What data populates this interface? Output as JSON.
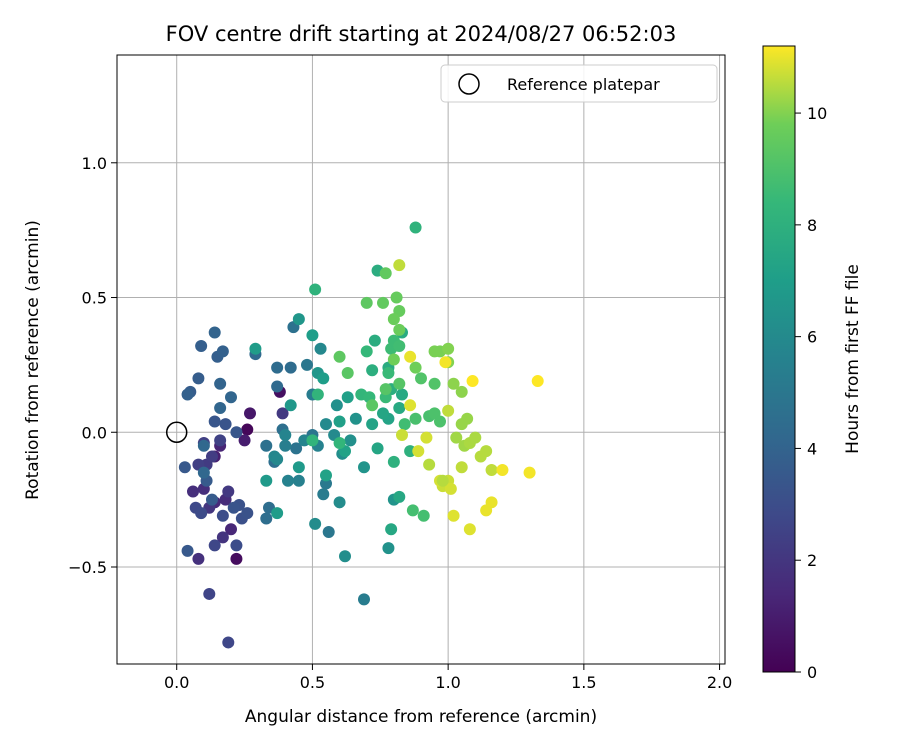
{
  "chart_data": {
    "type": "scatter",
    "title": "FOV centre drift starting at 2024/08/27 06:52:03",
    "xlabel": "Angular distance from reference (arcmin)",
    "ylabel": "Rotation from reference (arcmin)",
    "colorbar_label": "Hours from first FF file",
    "xlim": [
      -0.22,
      2.02
    ],
    "ylim": [
      -0.86,
      1.4
    ],
    "xticks": [
      0.0,
      0.5,
      1.0,
      1.5,
      2.0
    ],
    "xtick_labels": [
      "0.0",
      "0.5",
      "1.0",
      "1.5",
      "2.0"
    ],
    "yticks": [
      -0.5,
      0.0,
      0.5,
      1.0
    ],
    "ytick_labels": [
      "−0.5",
      "0.0",
      "0.5",
      "1.0"
    ],
    "colorbar_range": [
      0,
      11.2
    ],
    "colorbar_ticks": [
      0,
      2,
      4,
      6,
      8,
      10
    ],
    "colorbar_tick_labels": [
      "0",
      "2",
      "4",
      "6",
      "8",
      "10"
    ],
    "colormap": "viridis",
    "grid": true,
    "legend_position": "top-right",
    "reference": {
      "x": 0.0,
      "y": 0.0,
      "label": "Reference platepar"
    },
    "points": [
      {
        "x": 0.26,
        "y": 0.01,
        "h": 0.2
      },
      {
        "x": 0.22,
        "y": -0.47,
        "h": 0.4
      },
      {
        "x": 0.38,
        "y": 0.15,
        "h": 0.5
      },
      {
        "x": 0.27,
        "y": 0.07,
        "h": 0.8
      },
      {
        "x": 0.25,
        "y": -0.03,
        "h": 1.0
      },
      {
        "x": 0.14,
        "y": -0.09,
        "h": 1.1
      },
      {
        "x": 0.16,
        "y": -0.05,
        "h": 1.3
      },
      {
        "x": 0.2,
        "y": -0.36,
        "h": 1.4
      },
      {
        "x": 0.14,
        "y": -0.26,
        "h": 1.5
      },
      {
        "x": 0.18,
        "y": -0.25,
        "h": 1.6
      },
      {
        "x": 0.1,
        "y": -0.21,
        "h": 1.7
      },
      {
        "x": 0.06,
        "y": -0.22,
        "h": 1.7
      },
      {
        "x": 0.08,
        "y": -0.47,
        "h": 1.8
      },
      {
        "x": 0.17,
        "y": -0.39,
        "h": 1.9
      },
      {
        "x": 0.12,
        "y": -0.28,
        "h": 2.0
      },
      {
        "x": 0.19,
        "y": -0.22,
        "h": 2.1
      },
      {
        "x": 0.39,
        "y": 0.07,
        "h": 2.1
      },
      {
        "x": 0.11,
        "y": -0.12,
        "h": 2.2
      },
      {
        "x": 0.13,
        "y": -0.09,
        "h": 2.3
      },
      {
        "x": 0.08,
        "y": -0.12,
        "h": 2.4
      },
      {
        "x": 0.1,
        "y": -0.04,
        "h": 2.4
      },
      {
        "x": 0.16,
        "y": -0.03,
        "h": 2.5
      },
      {
        "x": 0.12,
        "y": -0.6,
        "h": 2.6
      },
      {
        "x": 0.14,
        "y": -0.42,
        "h": 2.7
      },
      {
        "x": 0.19,
        "y": -0.78,
        "h": 2.7
      },
      {
        "x": 0.07,
        "y": -0.28,
        "h": 2.8
      },
      {
        "x": 0.09,
        "y": -0.3,
        "h": 2.9
      },
      {
        "x": 0.17,
        "y": -0.31,
        "h": 3.0
      },
      {
        "x": 0.22,
        "y": -0.42,
        "h": 3.0
      },
      {
        "x": 0.24,
        "y": -0.32,
        "h": 3.1
      },
      {
        "x": 0.23,
        "y": -0.27,
        "h": 3.2
      },
      {
        "x": 0.26,
        "y": -0.3,
        "h": 3.2
      },
      {
        "x": 0.21,
        "y": -0.28,
        "h": 3.3
      },
      {
        "x": 0.18,
        "y": 0.03,
        "h": 3.3
      },
      {
        "x": 0.22,
        "y": 0.0,
        "h": 3.4
      },
      {
        "x": 0.14,
        "y": 0.04,
        "h": 3.4
      },
      {
        "x": 0.04,
        "y": -0.44,
        "h": 3.5
      },
      {
        "x": 0.03,
        "y": -0.13,
        "h": 3.5
      },
      {
        "x": 0.11,
        "y": -0.18,
        "h": 3.6
      },
      {
        "x": 0.13,
        "y": -0.25,
        "h": 3.6
      },
      {
        "x": 0.05,
        "y": 0.15,
        "h": 3.7
      },
      {
        "x": 0.08,
        "y": 0.2,
        "h": 3.7
      },
      {
        "x": 0.09,
        "y": 0.32,
        "h": 3.8
      },
      {
        "x": 0.15,
        "y": 0.28,
        "h": 3.8
      },
      {
        "x": 0.17,
        "y": 0.3,
        "h": 3.9
      },
      {
        "x": 0.04,
        "y": 0.14,
        "h": 3.9
      },
      {
        "x": 0.14,
        "y": 0.37,
        "h": 4.0
      },
      {
        "x": 0.16,
        "y": 0.18,
        "h": 4.0
      },
      {
        "x": 0.2,
        "y": 0.13,
        "h": 4.1
      },
      {
        "x": 0.16,
        "y": 0.09,
        "h": 4.1
      },
      {
        "x": 0.1,
        "y": -0.05,
        "h": 4.2
      },
      {
        "x": 0.1,
        "y": -0.15,
        "h": 4.2
      },
      {
        "x": 0.29,
        "y": 0.29,
        "h": 4.3
      },
      {
        "x": 0.37,
        "y": 0.17,
        "h": 4.3
      },
      {
        "x": 0.37,
        "y": 0.24,
        "h": 4.4
      },
      {
        "x": 0.42,
        "y": 0.24,
        "h": 4.4
      },
      {
        "x": 0.33,
        "y": -0.32,
        "h": 4.5
      },
      {
        "x": 0.34,
        "y": -0.28,
        "h": 4.5
      },
      {
        "x": 0.36,
        "y": -0.11,
        "h": 4.6
      },
      {
        "x": 0.39,
        "y": 0.01,
        "h": 4.6
      },
      {
        "x": 0.43,
        "y": 0.39,
        "h": 4.7
      },
      {
        "x": 0.33,
        "y": -0.05,
        "h": 4.7
      },
      {
        "x": 0.44,
        "y": -0.06,
        "h": 4.8
      },
      {
        "x": 0.5,
        "y": -0.01,
        "h": 4.9
      },
      {
        "x": 0.56,
        "y": -0.37,
        "h": 5.0
      },
      {
        "x": 0.48,
        "y": 0.25,
        "h": 5.0
      },
      {
        "x": 0.55,
        "y": -0.19,
        "h": 5.1
      },
      {
        "x": 0.54,
        "y": -0.23,
        "h": 5.2
      },
      {
        "x": 0.69,
        "y": -0.62,
        "h": 5.3
      },
      {
        "x": 0.5,
        "y": 0.14,
        "h": 5.3
      },
      {
        "x": 0.4,
        "y": -0.05,
        "h": 5.4
      },
      {
        "x": 0.45,
        "y": -0.18,
        "h": 5.5
      },
      {
        "x": 0.41,
        "y": -0.18,
        "h": 5.6
      },
      {
        "x": 0.52,
        "y": -0.05,
        "h": 5.6
      },
      {
        "x": 0.47,
        "y": -0.03,
        "h": 5.7
      },
      {
        "x": 0.4,
        "y": -0.01,
        "h": 5.7
      },
      {
        "x": 0.36,
        "y": -0.09,
        "h": 5.8
      },
      {
        "x": 0.37,
        "y": -0.1,
        "h": 5.9
      },
      {
        "x": 0.53,
        "y": 0.31,
        "h": 5.9
      },
      {
        "x": 0.55,
        "y": 0.03,
        "h": 6.0
      },
      {
        "x": 0.58,
        "y": -0.01,
        "h": 6.0
      },
      {
        "x": 0.51,
        "y": -0.34,
        "h": 6.1
      },
      {
        "x": 0.6,
        "y": -0.26,
        "h": 6.1
      },
      {
        "x": 0.62,
        "y": -0.46,
        "h": 6.2
      },
      {
        "x": 0.61,
        "y": -0.08,
        "h": 6.2
      },
      {
        "x": 0.64,
        "y": -0.03,
        "h": 6.3
      },
      {
        "x": 0.59,
        "y": 0.1,
        "h": 6.3
      },
      {
        "x": 0.66,
        "y": 0.05,
        "h": 6.4
      },
      {
        "x": 0.78,
        "y": -0.43,
        "h": 6.4
      },
      {
        "x": 0.8,
        "y": -0.25,
        "h": 6.5
      },
      {
        "x": 0.69,
        "y": -0.13,
        "h": 6.5
      },
      {
        "x": 0.45,
        "y": 0.42,
        "h": 6.6
      },
      {
        "x": 0.52,
        "y": 0.22,
        "h": 6.6
      },
      {
        "x": 0.42,
        "y": 0.1,
        "h": 6.7
      },
      {
        "x": 0.45,
        "y": -0.13,
        "h": 6.8
      },
      {
        "x": 0.33,
        "y": -0.18,
        "h": 6.8
      },
      {
        "x": 0.29,
        "y": 0.31,
        "h": 6.9
      },
      {
        "x": 0.37,
        "y": -0.3,
        "h": 6.9
      },
      {
        "x": 0.5,
        "y": 0.36,
        "h": 7.0
      },
      {
        "x": 0.54,
        "y": 0.2,
        "h": 7.0
      },
      {
        "x": 0.63,
        "y": 0.13,
        "h": 7.1
      },
      {
        "x": 0.6,
        "y": 0.04,
        "h": 7.1
      },
      {
        "x": 0.55,
        "y": -0.16,
        "h": 7.2
      },
      {
        "x": 0.62,
        "y": -0.07,
        "h": 7.2
      },
      {
        "x": 0.72,
        "y": 0.03,
        "h": 7.3
      },
      {
        "x": 0.78,
        "y": 0.05,
        "h": 7.3
      },
      {
        "x": 0.74,
        "y": -0.06,
        "h": 7.4
      },
      {
        "x": 0.76,
        "y": 0.07,
        "h": 7.4
      },
      {
        "x": 0.79,
        "y": -0.36,
        "h": 7.5
      },
      {
        "x": 0.82,
        "y": -0.24,
        "h": 7.5
      },
      {
        "x": 0.82,
        "y": 0.09,
        "h": 7.6
      },
      {
        "x": 0.83,
        "y": 0.14,
        "h": 7.6
      },
      {
        "x": 0.78,
        "y": 0.24,
        "h": 7.7
      },
      {
        "x": 0.83,
        "y": 0.37,
        "h": 7.7
      },
      {
        "x": 0.73,
        "y": 0.34,
        "h": 7.8
      },
      {
        "x": 0.74,
        "y": 0.6,
        "h": 7.8
      },
      {
        "x": 0.72,
        "y": 0.23,
        "h": 7.9
      },
      {
        "x": 0.79,
        "y": 0.16,
        "h": 7.9
      },
      {
        "x": 0.8,
        "y": -0.11,
        "h": 8.0
      },
      {
        "x": 0.86,
        "y": -0.07,
        "h": 8.0
      },
      {
        "x": 0.88,
        "y": 0.76,
        "h": 8.1
      },
      {
        "x": 0.51,
        "y": 0.53,
        "h": 8.1
      },
      {
        "x": 0.52,
        "y": 0.14,
        "h": 8.2
      },
      {
        "x": 0.5,
        "y": -0.03,
        "h": 8.2
      },
      {
        "x": 0.6,
        "y": -0.04,
        "h": 8.3
      },
      {
        "x": 0.68,
        "y": 0.14,
        "h": 8.3
      },
      {
        "x": 0.7,
        "y": 0.3,
        "h": 8.4
      },
      {
        "x": 0.71,
        "y": 0.13,
        "h": 8.4
      },
      {
        "x": 0.77,
        "y": 0.13,
        "h": 8.5
      },
      {
        "x": 0.78,
        "y": 0.22,
        "h": 8.5
      },
      {
        "x": 0.79,
        "y": 0.31,
        "h": 8.6
      },
      {
        "x": 0.8,
        "y": 0.34,
        "h": 8.6
      },
      {
        "x": 0.82,
        "y": 0.32,
        "h": 8.7
      },
      {
        "x": 0.84,
        "y": 0.03,
        "h": 8.7
      },
      {
        "x": 0.87,
        "y": -0.29,
        "h": 8.8
      },
      {
        "x": 0.91,
        "y": -0.31,
        "h": 8.8
      },
      {
        "x": 0.88,
        "y": 0.05,
        "h": 8.9
      },
      {
        "x": 0.93,
        "y": 0.06,
        "h": 8.9
      },
      {
        "x": 0.95,
        "y": 0.07,
        "h": 9.0
      },
      {
        "x": 0.97,
        "y": 0.04,
        "h": 9.0
      },
      {
        "x": 0.95,
        "y": 0.18,
        "h": 9.1
      },
      {
        "x": 0.9,
        "y": 0.2,
        "h": 9.1
      },
      {
        "x": 0.82,
        "y": 0.18,
        "h": 9.2
      },
      {
        "x": 0.77,
        "y": 0.16,
        "h": 9.2
      },
      {
        "x": 0.72,
        "y": 0.1,
        "h": 9.3
      },
      {
        "x": 0.63,
        "y": 0.22,
        "h": 9.3
      },
      {
        "x": 0.6,
        "y": 0.28,
        "h": 9.4
      },
      {
        "x": 0.7,
        "y": 0.48,
        "h": 9.4
      },
      {
        "x": 0.76,
        "y": 0.48,
        "h": 9.5
      },
      {
        "x": 0.77,
        "y": 0.59,
        "h": 9.5
      },
      {
        "x": 0.81,
        "y": 0.5,
        "h": 9.6
      },
      {
        "x": 0.82,
        "y": 0.45,
        "h": 9.6
      },
      {
        "x": 0.8,
        "y": 0.42,
        "h": 9.7
      },
      {
        "x": 0.82,
        "y": 0.38,
        "h": 9.7
      },
      {
        "x": 0.8,
        "y": 0.27,
        "h": 9.8
      },
      {
        "x": 0.88,
        "y": 0.24,
        "h": 9.8
      },
      {
        "x": 0.95,
        "y": 0.3,
        "h": 9.9
      },
      {
        "x": 0.97,
        "y": 0.3,
        "h": 9.9
      },
      {
        "x": 1.0,
        "y": 0.31,
        "h": 10.0
      },
      {
        "x": 1.0,
        "y": 0.26,
        "h": 10.0
      },
      {
        "x": 1.02,
        "y": 0.18,
        "h": 10.1
      },
      {
        "x": 1.05,
        "y": 0.15,
        "h": 10.1
      },
      {
        "x": 1.07,
        "y": 0.05,
        "h": 10.2
      },
      {
        "x": 1.05,
        "y": 0.03,
        "h": 10.2
      },
      {
        "x": 1.03,
        "y": -0.02,
        "h": 10.3
      },
      {
        "x": 1.06,
        "y": -0.05,
        "h": 10.3
      },
      {
        "x": 1.08,
        "y": -0.04,
        "h": 10.4
      },
      {
        "x": 1.1,
        "y": -0.02,
        "h": 10.4
      },
      {
        "x": 1.12,
        "y": -0.09,
        "h": 10.5
      },
      {
        "x": 1.14,
        "y": -0.07,
        "h": 10.5
      },
      {
        "x": 1.16,
        "y": -0.14,
        "h": 10.6
      },
      {
        "x": 1.05,
        "y": -0.13,
        "h": 10.6
      },
      {
        "x": 1.0,
        "y": -0.18,
        "h": 10.7
      },
      {
        "x": 0.98,
        "y": -0.2,
        "h": 10.7
      },
      {
        "x": 0.97,
        "y": -0.18,
        "h": 10.8
      },
      {
        "x": 1.01,
        "y": -0.21,
        "h": 10.8
      },
      {
        "x": 1.02,
        "y": -0.31,
        "h": 10.9
      },
      {
        "x": 1.08,
        "y": -0.36,
        "h": 10.9
      },
      {
        "x": 1.14,
        "y": -0.29,
        "h": 11.0
      },
      {
        "x": 1.16,
        "y": -0.26,
        "h": 11.0
      },
      {
        "x": 1.2,
        "y": -0.14,
        "h": 11.1
      },
      {
        "x": 1.3,
        "y": -0.15,
        "h": 11.1
      },
      {
        "x": 1.33,
        "y": 0.19,
        "h": 11.2
      },
      {
        "x": 1.09,
        "y": 0.19,
        "h": 11.2
      },
      {
        "x": 0.99,
        "y": 0.26,
        "h": 11.1
      },
      {
        "x": 0.86,
        "y": 0.28,
        "h": 11.0
      },
      {
        "x": 0.86,
        "y": 0.1,
        "h": 10.9
      },
      {
        "x": 0.89,
        "y": -0.07,
        "h": 10.8
      },
      {
        "x": 0.92,
        "y": -0.02,
        "h": 10.8
      },
      {
        "x": 0.83,
        "y": -0.01,
        "h": 10.7
      },
      {
        "x": 0.82,
        "y": 0.62,
        "h": 10.6
      },
      {
        "x": 0.93,
        "y": -0.12,
        "h": 10.5
      },
      {
        "x": 0.98,
        "y": -0.18,
        "h": 10.5
      },
      {
        "x": 1.0,
        "y": 0.08,
        "h": 10.6
      }
    ]
  }
}
